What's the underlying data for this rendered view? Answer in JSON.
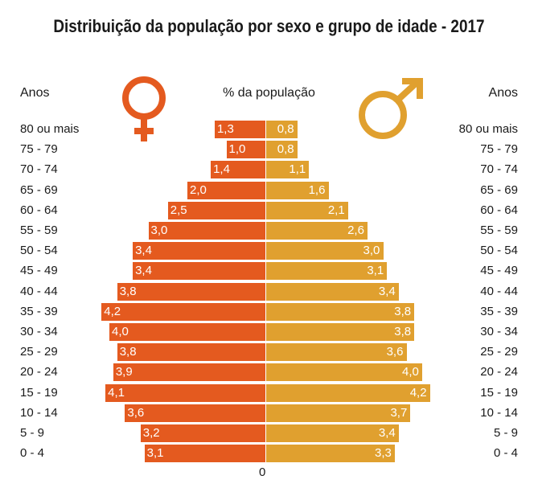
{
  "title": "Distribuição da população por sexo e grupo de idade - 2017",
  "headers": {
    "anos_left": "Anos",
    "anos_right": "Anos",
    "pct": "% da população",
    "zero": "0"
  },
  "colors": {
    "female": "#e45a1f",
    "male": "#e0a02f"
  },
  "icons": {
    "female": "female-symbol-icon",
    "male": "male-symbol-icon"
  },
  "chart_data": {
    "type": "bar",
    "orientation": "horizontal-population-pyramid",
    "title": "Distribuição da população por sexo e grupo de idade - 2017",
    "xlabel": "% da população",
    "ylabel": "Anos",
    "categories": [
      "80 ou mais",
      "75 - 79",
      "70 - 74",
      "65 - 69",
      "60 - 64",
      "55 - 59",
      "50 - 54",
      "45 - 49",
      "40 - 44",
      "35 - 39",
      "30 - 34",
      "25 - 29",
      "20 - 24",
      "15 - 19",
      "10 - 14",
      "5 - 9",
      "0 - 4"
    ],
    "series": [
      {
        "name": "",
        "side": "left",
        "values": [
          1.3,
          1.0,
          1.4,
          2.0,
          2.5,
          3.0,
          3.4,
          3.4,
          3.8,
          4.2,
          4.0,
          3.8,
          3.9,
          4.1,
          3.6,
          3.2,
          3.1
        ],
        "labels": [
          "1,3",
          "1,0",
          "1,4",
          "2,0",
          "2,5",
          "3,0",
          "3,4",
          "3,4",
          "3,8",
          "4,2",
          "4,0",
          "3,8",
          "3,9",
          "4,1",
          "3,6",
          "3,2",
          "3,1"
        ]
      },
      {
        "name": "",
        "side": "right",
        "values": [
          0.8,
          0.8,
          1.1,
          1.6,
          2.1,
          2.6,
          3.0,
          3.1,
          3.4,
          3.8,
          3.8,
          3.6,
          4.0,
          4.2,
          3.7,
          3.4,
          3.3
        ],
        "labels": [
          "0,8",
          "0,8",
          "1,1",
          "1,6",
          "2,1",
          "2,6",
          "3,0",
          "3,1",
          "3,4",
          "3,8",
          "3,8",
          "3,6",
          "4,0",
          "4,2",
          "3,7",
          "3,4",
          "3,3"
        ]
      }
    ],
    "xlim": [
      0,
      4.4
    ],
    "grid": false,
    "legend": "none"
  }
}
